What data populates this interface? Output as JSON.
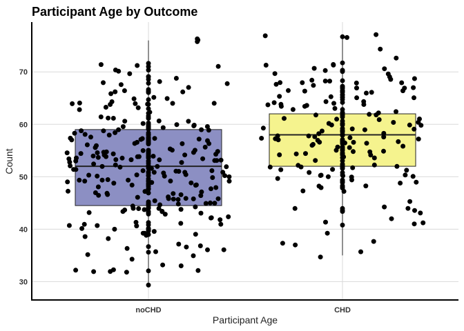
{
  "chart_data": {
    "type": "boxplot",
    "title": "Participant Age by Outcome",
    "xlabel": "Participant Age",
    "ylabel": "Count",
    "categories": [
      "noCHD",
      "CHD"
    ],
    "ylim": [
      26.5,
      79.5
    ],
    "yticks": [
      30,
      40,
      50,
      60,
      70
    ],
    "grid": true,
    "legend": "none",
    "colors": {
      "noCHD": "#8c8fc3",
      "CHD": "#f5f38e",
      "point": "#000000",
      "box_line": "#222222"
    },
    "boxes": [
      {
        "category": "noCHD",
        "min": 29,
        "q1": 44.5,
        "median": 52,
        "q3": 59,
        "max": 76
      },
      {
        "category": "CHD",
        "min": 35,
        "q1": 52,
        "median": 58,
        "q3": 62,
        "max": 77
      }
    ]
  }
}
